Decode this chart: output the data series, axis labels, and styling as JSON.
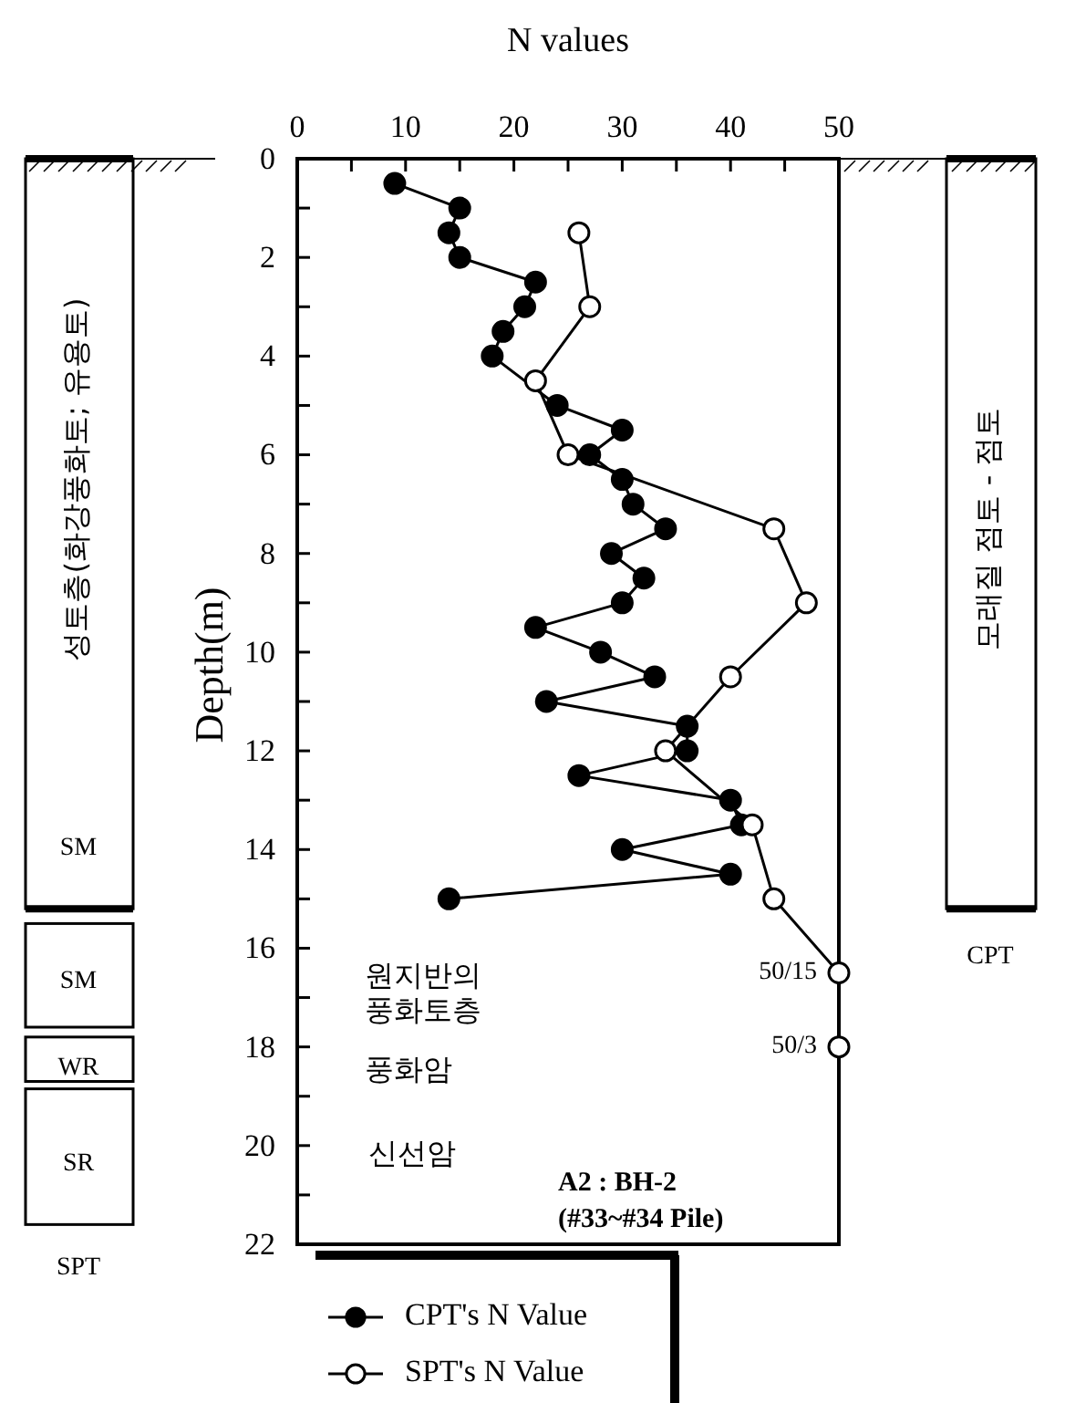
{
  "chart_data": {
    "type": "line",
    "xlabel": "N values",
    "ylabel": "Depth(m)",
    "xlim": [
      0,
      50
    ],
    "xticks": [
      0,
      {
        "value": 5,
        "label": null
      },
      10,
      {
        "value": 15,
        "label": null
      },
      20,
      {
        "value": 25,
        "label": null
      },
      30,
      {
        "value": 35,
        "label": null
      },
      40,
      {
        "value": 45,
        "label": null
      },
      50
    ],
    "ylim": [
      22,
      0
    ],
    "yticks": [
      0,
      {
        "value": 1,
        "label": null
      },
      2,
      {
        "value": 3,
        "label": null
      },
      4,
      {
        "value": 5,
        "label": null
      },
      6,
      {
        "value": 7,
        "label": null
      },
      8,
      {
        "value": 9,
        "label": null
      },
      10,
      {
        "value": 11,
        "label": null
      },
      12,
      {
        "value": 13,
        "label": null
      },
      14,
      {
        "value": 15,
        "label": null
      },
      16,
      {
        "value": 17,
        "label": null
      },
      18,
      {
        "value": 19,
        "label": null
      },
      20,
      {
        "value": 21,
        "label": null
      },
      22
    ],
    "series": [
      {
        "name": "CPT's N Value",
        "color": "#000000",
        "x": [
          9,
          15,
          14,
          15,
          22,
          21,
          19,
          18,
          24,
          30,
          27,
          30,
          31,
          34,
          29,
          32,
          30,
          22,
          28,
          33,
          23,
          36,
          36,
          26,
          40,
          41,
          30,
          40,
          14
        ],
        "values": [
          0.5,
          1,
          1.5,
          2,
          2.5,
          3,
          3.5,
          4,
          5,
          5.5,
          6,
          6.5,
          7,
          7.5,
          8,
          8.5,
          9,
          9.5,
          10,
          10.5,
          11,
          11.5,
          12,
          12.5,
          13,
          13.5,
          14,
          14.5,
          15
        ]
      },
      {
        "name": "SPT's N Value",
        "color": "#ffffff",
        "x": [
          26,
          27,
          22,
          25,
          44,
          47,
          40,
          34,
          42,
          44,
          50,
          50
        ],
        "values": [
          1.5,
          3,
          4.5,
          6,
          7.5,
          9,
          10.5,
          12,
          13.5,
          15,
          16.5,
          18
        ],
        "value_labels": [
          null,
          null,
          null,
          null,
          null,
          null,
          null,
          null,
          null,
          null,
          "50/15",
          "50/3"
        ]
      }
    ],
    "marker": "circle",
    "line_style": "solid",
    "legend": "bottom",
    "grid": false,
    "annotations": [
      "성토층(화강풍화토; 유용토)",
      "SM",
      "SM",
      "WR",
      "SR",
      "SPT",
      "모래질 점토 - 점토",
      "CPT",
      "원지반의\n풍화토층",
      "풍화암",
      "신선암",
      "A2 : BH-2\n(#33~#34 Pile)"
    ]
  }
}
